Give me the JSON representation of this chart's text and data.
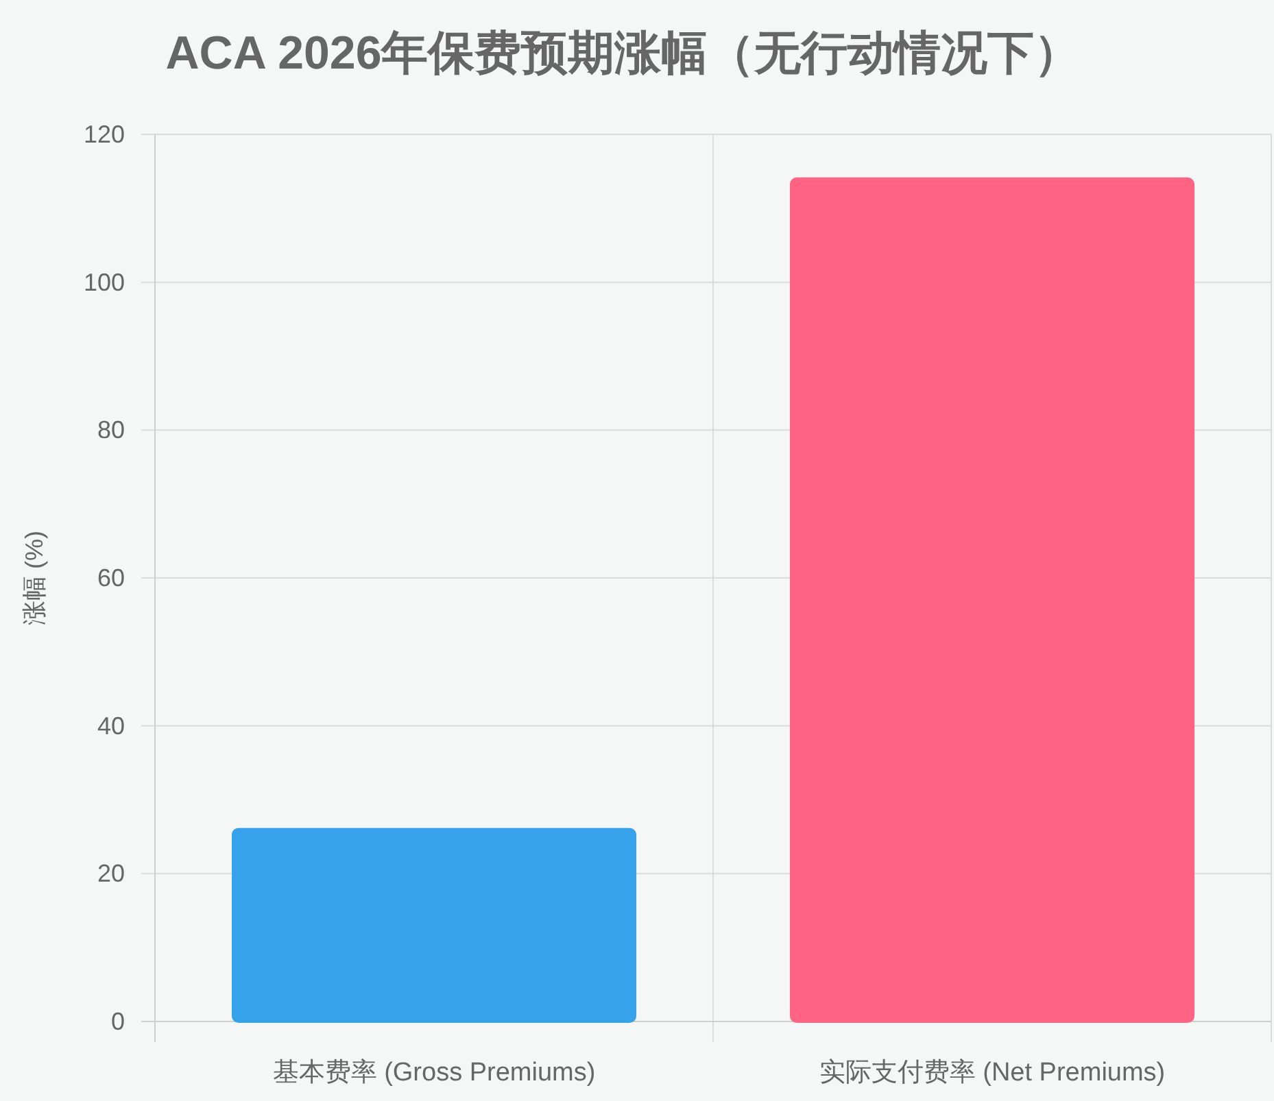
{
  "chart_data": {
    "type": "bar",
    "title": "ACA 2026年保费预期涨幅（无行动情况下）",
    "ylabel": "涨幅 (%)",
    "categories": [
      "基本费率 (Gross Premiums)",
      "实际支付费率 (Net Premiums)"
    ],
    "values": [
      26,
      114
    ],
    "colors": [
      "#36a2eb",
      "#ff6384"
    ],
    "ylim": [
      0,
      120
    ],
    "yticks": [
      0,
      20,
      40,
      60,
      80,
      100,
      120
    ],
    "grid": true
  }
}
